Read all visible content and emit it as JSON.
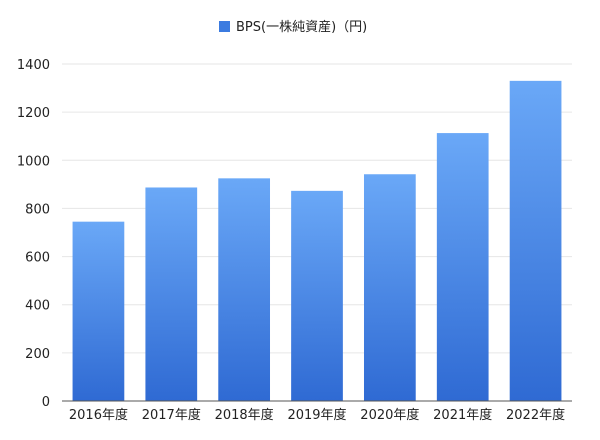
{
  "chart_data": {
    "type": "bar",
    "categories": [
      "2016年度",
      "2017年度",
      "2018年度",
      "2019年度",
      "2020年度",
      "2021年度",
      "2022年度"
    ],
    "series": [
      {
        "name": "BPS(一株純資産)（円)",
        "values": [
          745,
          887,
          925,
          873,
          942,
          1113,
          1330
        ]
      }
    ],
    "title": "",
    "xlabel": "",
    "ylabel": "",
    "ylim": [
      0,
      1400
    ],
    "yticks": [
      0,
      200,
      400,
      600,
      800,
      1000,
      1200,
      1400
    ],
    "grid": true,
    "legend_position": "top-center",
    "colors": {
      "bar_top": "#6aa8f7",
      "bar_bottom": "#2f6ad3",
      "legend_swatch": "#3b7be0"
    }
  }
}
